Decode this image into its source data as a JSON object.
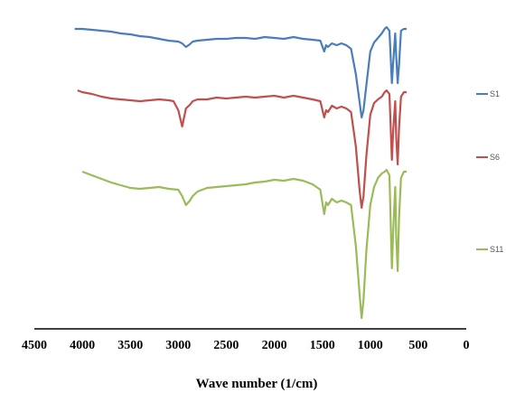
{
  "chart_data": {
    "type": "line",
    "title": "",
    "xlabel": "Wave number (1/cm)",
    "ylabel": "",
    "xlim": [
      4500,
      0
    ],
    "x_reversed": true,
    "x_ticks": [
      4500,
      4000,
      3500,
      3000,
      2500,
      2000,
      1500,
      1000,
      500,
      0
    ],
    "y_axis_visible": false,
    "grid": false,
    "legend_position": "right",
    "series": [
      {
        "name": "S1",
        "color": "#4a7ebb",
        "points": [
          [
            4080,
            20
          ],
          [
            4000,
            20
          ],
          [
            3900,
            21
          ],
          [
            3800,
            22
          ],
          [
            3700,
            23
          ],
          [
            3600,
            25
          ],
          [
            3500,
            26
          ],
          [
            3400,
            28
          ],
          [
            3300,
            29
          ],
          [
            3200,
            31
          ],
          [
            3100,
            33
          ],
          [
            3000,
            34
          ],
          [
            2960,
            36
          ],
          [
            2920,
            40
          ],
          [
            2880,
            37
          ],
          [
            2850,
            34
          ],
          [
            2800,
            33
          ],
          [
            2700,
            32
          ],
          [
            2600,
            31
          ],
          [
            2500,
            31
          ],
          [
            2400,
            30
          ],
          [
            2300,
            30
          ],
          [
            2200,
            31
          ],
          [
            2100,
            29
          ],
          [
            2000,
            30
          ],
          [
            1900,
            31
          ],
          [
            1800,
            29
          ],
          [
            1700,
            31
          ],
          [
            1600,
            32
          ],
          [
            1520,
            33
          ],
          [
            1480,
            45
          ],
          [
            1460,
            38
          ],
          [
            1440,
            40
          ],
          [
            1400,
            36
          ],
          [
            1350,
            38
          ],
          [
            1300,
            36
          ],
          [
            1250,
            38
          ],
          [
            1200,
            42
          ],
          [
            1150,
            70
          ],
          [
            1110,
            102
          ],
          [
            1090,
            118
          ],
          [
            1070,
            110
          ],
          [
            1040,
            82
          ],
          [
            1000,
            45
          ],
          [
            960,
            35
          ],
          [
            920,
            30
          ],
          [
            880,
            25
          ],
          [
            850,
            20
          ],
          [
            830,
            18
          ],
          [
            800,
            22
          ],
          [
            775,
            80
          ],
          [
            760,
            55
          ],
          [
            740,
            25
          ],
          [
            730,
            50
          ],
          [
            715,
            80
          ],
          [
            700,
            60
          ],
          [
            680,
            22
          ],
          [
            650,
            20
          ],
          [
            620,
            20
          ]
        ]
      },
      {
        "name": "S6",
        "color": "#c0504d",
        "points": [
          [
            4050,
            88
          ],
          [
            4000,
            90
          ],
          [
            3900,
            92
          ],
          [
            3800,
            95
          ],
          [
            3700,
            97
          ],
          [
            3600,
            98
          ],
          [
            3500,
            99
          ],
          [
            3400,
            100
          ],
          [
            3300,
            99
          ],
          [
            3200,
            98
          ],
          [
            3100,
            99
          ],
          [
            3050,
            100
          ],
          [
            3000,
            110
          ],
          [
            2960,
            128
          ],
          [
            2920,
            108
          ],
          [
            2880,
            104
          ],
          [
            2850,
            100
          ],
          [
            2800,
            98
          ],
          [
            2700,
            98
          ],
          [
            2600,
            96
          ],
          [
            2500,
            97
          ],
          [
            2400,
            96
          ],
          [
            2300,
            95
          ],
          [
            2200,
            96
          ],
          [
            2100,
            95
          ],
          [
            2000,
            94
          ],
          [
            1900,
            96
          ],
          [
            1800,
            94
          ],
          [
            1700,
            96
          ],
          [
            1600,
            98
          ],
          [
            1520,
            100
          ],
          [
            1480,
            118
          ],
          [
            1460,
            110
          ],
          [
            1440,
            112
          ],
          [
            1400,
            105
          ],
          [
            1350,
            108
          ],
          [
            1300,
            106
          ],
          [
            1250,
            108
          ],
          [
            1200,
            112
          ],
          [
            1150,
            150
          ],
          [
            1110,
            200
          ],
          [
            1090,
            218
          ],
          [
            1070,
            205
          ],
          [
            1040,
            160
          ],
          [
            1000,
            115
          ],
          [
            960,
            102
          ],
          [
            920,
            98
          ],
          [
            880,
            95
          ],
          [
            850,
            90
          ],
          [
            830,
            88
          ],
          [
            800,
            92
          ],
          [
            775,
            165
          ],
          [
            760,
            130
          ],
          [
            740,
            100
          ],
          [
            730,
            140
          ],
          [
            715,
            170
          ],
          [
            700,
            130
          ],
          [
            680,
            95
          ],
          [
            650,
            90
          ],
          [
            620,
            90
          ]
        ]
      },
      {
        "name": "S11",
        "color": "#9bbb59",
        "points": [
          [
            4000,
            178
          ],
          [
            3900,
            182
          ],
          [
            3800,
            186
          ],
          [
            3700,
            190
          ],
          [
            3600,
            193
          ],
          [
            3500,
            196
          ],
          [
            3400,
            197
          ],
          [
            3300,
            196
          ],
          [
            3200,
            195
          ],
          [
            3100,
            197
          ],
          [
            3000,
            198
          ],
          [
            2960,
            205
          ],
          [
            2920,
            215
          ],
          [
            2880,
            210
          ],
          [
            2850,
            205
          ],
          [
            2800,
            200
          ],
          [
            2700,
            196
          ],
          [
            2600,
            195
          ],
          [
            2500,
            194
          ],
          [
            2400,
            193
          ],
          [
            2300,
            192
          ],
          [
            2200,
            190
          ],
          [
            2100,
            189
          ],
          [
            2000,
            187
          ],
          [
            1900,
            188
          ],
          [
            1800,
            186
          ],
          [
            1700,
            188
          ],
          [
            1600,
            192
          ],
          [
            1520,
            198
          ],
          [
            1480,
            225
          ],
          [
            1460,
            212
          ],
          [
            1440,
            215
          ],
          [
            1400,
            208
          ],
          [
            1350,
            212
          ],
          [
            1300,
            210
          ],
          [
            1250,
            212
          ],
          [
            1200,
            215
          ],
          [
            1150,
            260
          ],
          [
            1110,
            315
          ],
          [
            1090,
            340
          ],
          [
            1070,
            320
          ],
          [
            1040,
            265
          ],
          [
            1000,
            215
          ],
          [
            960,
            195
          ],
          [
            920,
            185
          ],
          [
            880,
            180
          ],
          [
            850,
            178
          ],
          [
            830,
            176
          ],
          [
            800,
            182
          ],
          [
            775,
            285
          ],
          [
            760,
            240
          ],
          [
            740,
            195
          ],
          [
            730,
            250
          ],
          [
            715,
            288
          ],
          [
            700,
            230
          ],
          [
            680,
            185
          ],
          [
            650,
            178
          ],
          [
            620,
            178
          ]
        ]
      }
    ]
  }
}
